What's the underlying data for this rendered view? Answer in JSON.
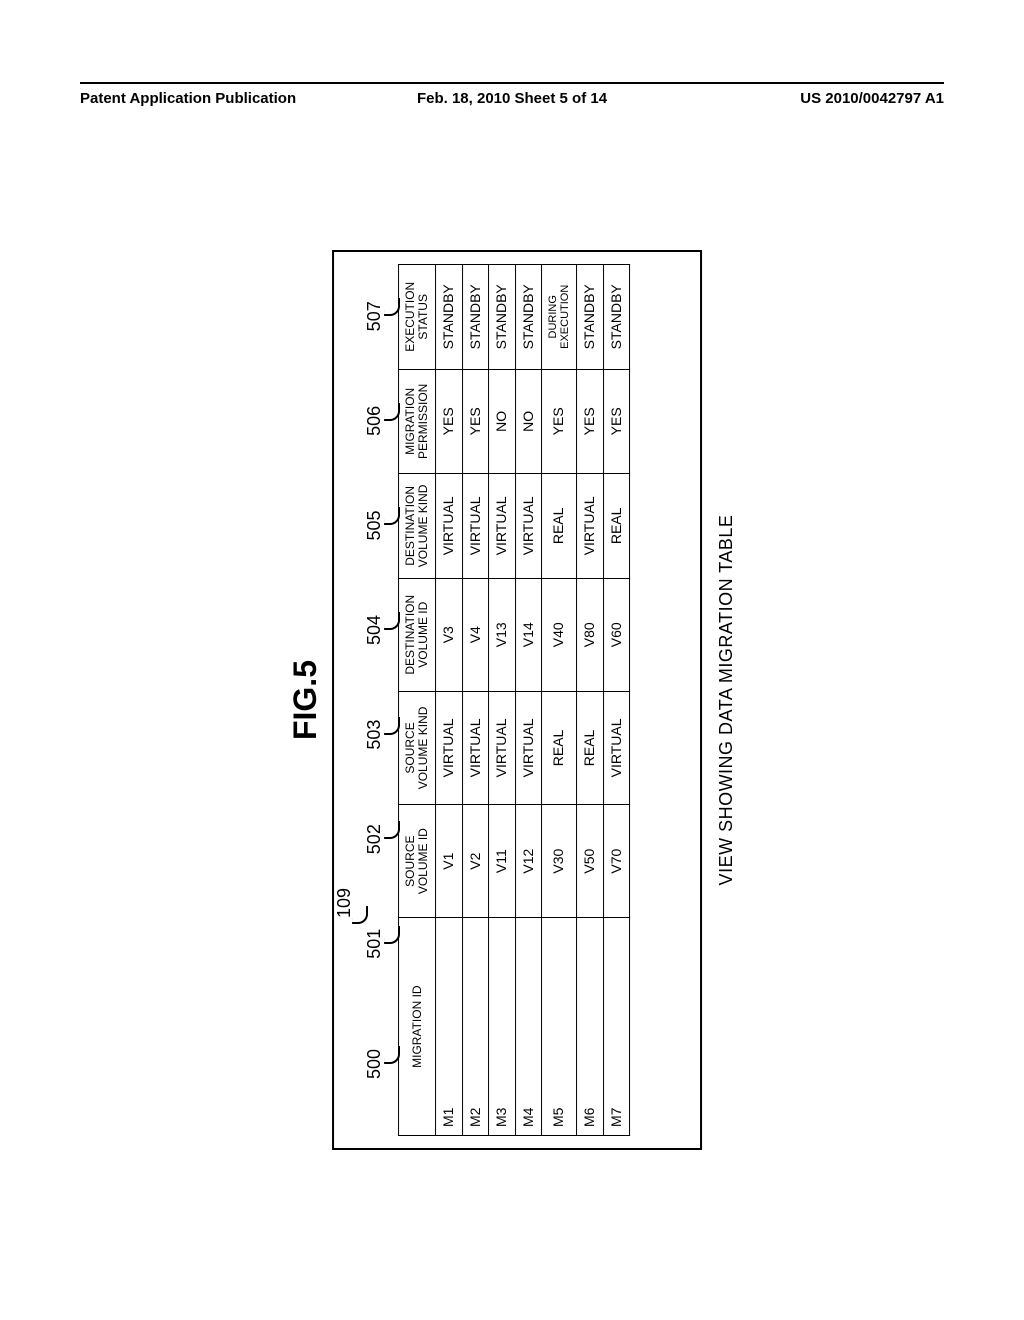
{
  "header": {
    "left": "Patent Application Publication",
    "center": "Feb. 18, 2010  Sheet 5 of 14",
    "right": "US 2010/0042797 A1"
  },
  "figure": {
    "label": "FIG.5",
    "outer_callout": "109",
    "caption": "VIEW SHOWING DATA MIGRATION TABLE",
    "callouts": [
      "500",
      "501",
      "502",
      "503",
      "504",
      "505",
      "506",
      "507"
    ],
    "columns": [
      "MIGRATION ID",
      "SOURCE\nVOLUME ID",
      "SOURCE\nVOLUME KIND",
      "DESTINATION\nVOLUME ID",
      "DESTINATION\nVOLUME KIND",
      "MIGRATION\nPERMISSION",
      "EXECUTION\nSTATUS"
    ],
    "rows": [
      [
        "M1",
        "V1",
        "VIRTUAL",
        "V3",
        "VIRTUAL",
        "YES",
        "STANDBY"
      ],
      [
        "M2",
        "V2",
        "VIRTUAL",
        "V4",
        "VIRTUAL",
        "YES",
        "STANDBY"
      ],
      [
        "M3",
        "V11",
        "VIRTUAL",
        "V13",
        "VIRTUAL",
        "NO",
        "STANDBY"
      ],
      [
        "M4",
        "V12",
        "VIRTUAL",
        "V14",
        "VIRTUAL",
        "NO",
        "STANDBY"
      ],
      [
        "M5",
        "V30",
        "REAL",
        "V40",
        "REAL",
        "YES",
        "DURING EXECUTION"
      ],
      [
        "M6",
        "V50",
        "REAL",
        "V80",
        "VIRTUAL",
        "YES",
        "STANDBY"
      ],
      [
        "M7",
        "V70",
        "VIRTUAL",
        "V60",
        "REAL",
        "YES",
        "STANDBY"
      ]
    ]
  }
}
